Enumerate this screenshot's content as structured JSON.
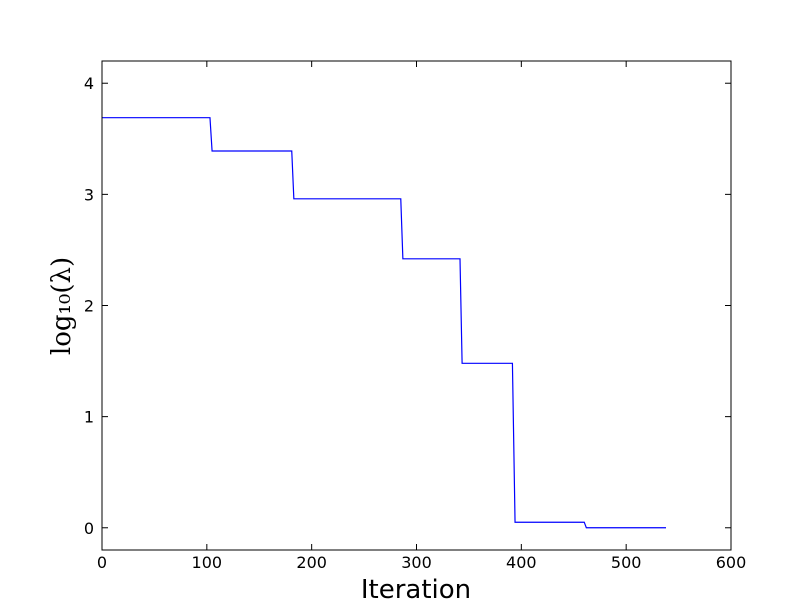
{
  "chart_data": {
    "type": "line",
    "xlabel": "Iteration",
    "ylabel": "log₁₀(λ)",
    "x": [
      0,
      103,
      105,
      181,
      183,
      285,
      287,
      341.5,
      343.5,
      391.5,
      394,
      460,
      462,
      538
    ],
    "series": [
      {
        "color": "#0000ff",
        "values": [
          3.69,
          3.69,
          3.39,
          3.39,
          2.96,
          2.96,
          2.42,
          2.42,
          1.48,
          1.48,
          0.05,
          0.05,
          0.0,
          0.0
        ]
      }
    ],
    "xlim": [
      0,
      600
    ],
    "xticks": [
      0,
      100,
      200,
      300,
      400,
      500,
      600
    ],
    "ylim": [
      -0.2,
      4.2
    ],
    "yticks": [
      0,
      1,
      2,
      3,
      4
    ]
  }
}
